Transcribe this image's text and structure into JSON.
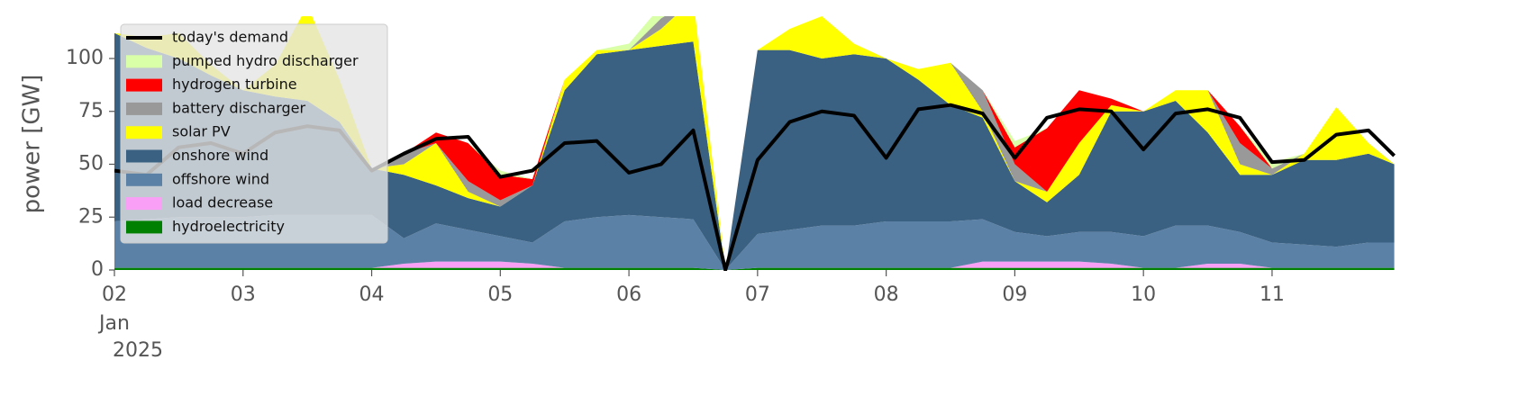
{
  "chart_data": {
    "type": "stacked_area",
    "y_label": "power [GW]",
    "x_date_label": [
      "Jan",
      "2025"
    ],
    "x": [
      2,
      2.25,
      2.5,
      2.75,
      3,
      3.25,
      3.5,
      3.75,
      4,
      4.25,
      4.5,
      4.75,
      5,
      5.25,
      5.5,
      5.75,
      6,
      6.25,
      6.5,
      6.75,
      7,
      7.25,
      7.5,
      7.75,
      8,
      8.25,
      8.5,
      8.75,
      9,
      9.25,
      9.5,
      9.75,
      10,
      10.25,
      10.5,
      10.75,
      11,
      11.25,
      11.5,
      11.75,
      11.95
    ],
    "xlim": [
      2,
      11.96
    ],
    "xticks": [
      {
        "value": 2,
        "label": "02"
      },
      {
        "value": 3,
        "label": "03"
      },
      {
        "value": 4,
        "label": "04"
      },
      {
        "value": 5,
        "label": "05"
      },
      {
        "value": 6,
        "label": "06"
      },
      {
        "value": 7,
        "label": "07"
      },
      {
        "value": 8,
        "label": "08"
      },
      {
        "value": 9,
        "label": "09"
      },
      {
        "value": 10,
        "label": "10"
      },
      {
        "value": 11,
        "label": "11"
      }
    ],
    "ylim": [
      0,
      120
    ],
    "yticks": [
      0,
      25,
      50,
      75,
      100
    ],
    "legend": "upper left",
    "series": [
      {
        "name": "hydroelectricity",
        "color": "#008000",
        "values": [
          1,
          1,
          1,
          1,
          1,
          1,
          1,
          1,
          1,
          1,
          1,
          1,
          1,
          1,
          1,
          1,
          1,
          1,
          1,
          0,
          1,
          1,
          1,
          1,
          1,
          1,
          1,
          1,
          1,
          1,
          1,
          1,
          1,
          1,
          1,
          1,
          1,
          1,
          1,
          1,
          1
        ]
      },
      {
        "name": "load decrease",
        "color": "#f99ff5",
        "values": [
          0,
          0,
          0,
          0,
          0,
          0,
          0,
          0,
          0,
          2,
          3,
          3,
          3,
          2,
          0,
          0,
          0,
          0,
          0,
          0,
          0,
          0,
          0,
          0,
          0,
          0,
          0,
          3,
          3,
          3,
          3,
          2,
          0,
          0,
          2,
          2,
          0,
          0,
          0,
          0,
          0
        ]
      },
      {
        "name": "offshore wind",
        "color": "#5b82a6",
        "values": [
          22,
          23,
          24,
          24,
          24,
          25,
          25,
          25,
          25,
          12,
          18,
          15,
          12,
          10,
          22,
          24,
          25,
          24,
          23,
          0,
          16,
          18,
          20,
          20,
          22,
          22,
          22,
          20,
          14,
          12,
          14,
          15,
          15,
          20,
          18,
          15,
          12,
          11,
          10,
          12,
          12
        ]
      },
      {
        "name": "onshore wind",
        "color": "#3b6182",
        "values": [
          89,
          81,
          75,
          67,
          60,
          56,
          54,
          44,
          22,
          30,
          18,
          15,
          14,
          27,
          62,
          77,
          78,
          81,
          84,
          0,
          87,
          85,
          79,
          81,
          77,
          67,
          55,
          48,
          24,
          16,
          27,
          57,
          59,
          59,
          44,
          27,
          32,
          40,
          41,
          42,
          37
        ]
      },
      {
        "name": "solar PV",
        "color": "#ffff00",
        "values": [
          0,
          5,
          12,
          5,
          0,
          15,
          45,
          20,
          0,
          5,
          20,
          3,
          0,
          0,
          5,
          2,
          0,
          8,
          20,
          0,
          0,
          10,
          20,
          5,
          0,
          5,
          20,
          3,
          0,
          5,
          15,
          3,
          0,
          5,
          20,
          5,
          0,
          3,
          25,
          5,
          0
        ]
      },
      {
        "name": "battery discharger",
        "color": "#999999",
        "values": [
          0,
          0,
          0,
          0,
          0,
          0,
          0,
          0,
          0,
          5,
          0,
          5,
          3,
          0,
          0,
          0,
          0,
          5,
          0,
          0,
          0,
          0,
          0,
          0,
          0,
          0,
          0,
          10,
          8,
          0,
          0,
          0,
          0,
          0,
          0,
          10,
          3,
          0,
          0,
          0,
          0
        ]
      },
      {
        "name": "hydrogen turbine",
        "color": "#ff0000",
        "values": [
          0,
          0,
          0,
          0,
          0,
          0,
          0,
          0,
          0,
          0,
          5,
          18,
          12,
          3,
          0,
          0,
          0,
          0,
          0,
          0,
          0,
          0,
          0,
          0,
          0,
          0,
          0,
          0,
          8,
          30,
          25,
          3,
          0,
          0,
          0,
          8,
          0,
          0,
          0,
          0,
          0
        ]
      },
      {
        "name": "pumped hydro discharger",
        "color": "#d9ffa8",
        "values": [
          0,
          0,
          0,
          0,
          0,
          0,
          0,
          0,
          0,
          0,
          0,
          0,
          2,
          0,
          0,
          0,
          3,
          6,
          0,
          0,
          0,
          0,
          0,
          0,
          0,
          0,
          0,
          0,
          3,
          0,
          0,
          0,
          0,
          0,
          0,
          0,
          3,
          0,
          0,
          0,
          0
        ]
      }
    ],
    "line": {
      "name": "today's demand",
      "color": "#000000",
      "values": [
        47,
        45,
        58,
        60,
        55,
        65,
        68,
        66,
        47,
        55,
        62,
        63,
        44,
        47,
        60,
        61,
        46,
        50,
        66,
        0,
        52,
        70,
        75,
        73,
        53,
        76,
        78,
        74,
        53,
        72,
        76,
        75,
        57,
        74,
        76,
        72,
        51,
        52,
        64,
        66,
        54
      ]
    }
  }
}
